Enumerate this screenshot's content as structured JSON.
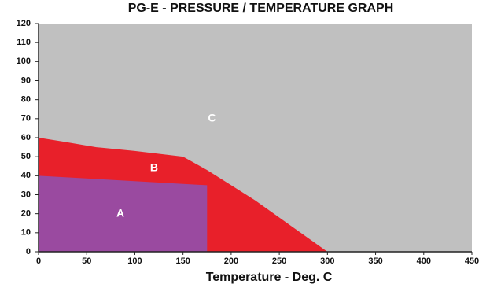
{
  "chart_data": {
    "type": "area",
    "title": "PG-E -  PRESSURE / TEMPERATURE GRAPH",
    "xlabel": "Temperature - Deg. C",
    "ylabel": "",
    "xlim": [
      0,
      450
    ],
    "ylim": [
      0,
      120
    ],
    "x_ticks": [
      0,
      50,
      100,
      150,
      200,
      250,
      300,
      350,
      400,
      450
    ],
    "y_ticks": [
      0,
      10,
      20,
      30,
      40,
      50,
      60,
      70,
      80,
      90,
      100,
      110,
      120
    ],
    "grid": false,
    "background_color": "#c0c0c0",
    "regions": [
      {
        "name": "C",
        "color": "#c0c0c0",
        "label_at": [
          180,
          70
        ],
        "boundary": [
          [
            0,
            0
          ],
          [
            450,
            0
          ],
          [
            450,
            120
          ],
          [
            0,
            120
          ]
        ]
      },
      {
        "name": "B",
        "color": "#e8202a",
        "label_at": [
          120,
          44
        ],
        "boundary": [
          [
            0,
            0
          ],
          [
            0,
            60
          ],
          [
            25,
            58
          ],
          [
            60,
            55
          ],
          [
            100,
            53
          ],
          [
            150,
            50
          ],
          [
            175,
            43
          ],
          [
            200,
            35
          ],
          [
            225,
            27
          ],
          [
            250,
            18
          ],
          [
            275,
            9
          ],
          [
            300,
            0
          ]
        ]
      },
      {
        "name": "A",
        "color": "#9a4aa0",
        "label_at": [
          85,
          20
        ],
        "boundary": [
          [
            0,
            0
          ],
          [
            0,
            40
          ],
          [
            175,
            35
          ],
          [
            175,
            0
          ]
        ]
      }
    ]
  }
}
